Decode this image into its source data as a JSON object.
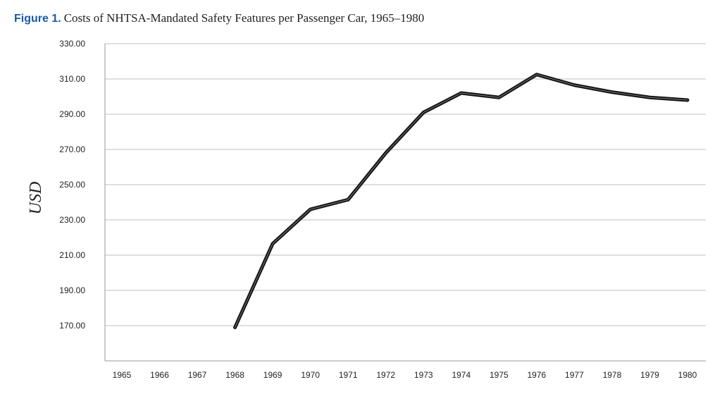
{
  "figure": {
    "label": "Figure 1.",
    "title": "Costs of NHTSA-Mandated Safety Features per Passenger Car, 1965–1980"
  },
  "chart_data": {
    "type": "line",
    "title": "Costs of NHTSA-Mandated Safety Features per Passenger Car, 1965–1980",
    "xlabel": "",
    "ylabel": "USD",
    "categories": [
      "1965",
      "1966",
      "1967",
      "1968",
      "1969",
      "1970",
      "1971",
      "1972",
      "1973",
      "1974",
      "1975",
      "1976",
      "1977",
      "1978",
      "1979",
      "1980"
    ],
    "series": [
      {
        "values": [
          null,
          null,
          null,
          169,
          216.5,
          236,
          241.5,
          268,
          291,
          302,
          299.5,
          312.5,
          306.5,
          302.5,
          299.5,
          298
        ]
      }
    ],
    "yticks": [
      "170.00",
      "190.00",
      "210.00",
      "230.00",
      "250.00",
      "270.00",
      "290.00",
      "310.00",
      "330.00"
    ],
    "ylim": [
      150,
      330
    ],
    "grid": true,
    "line_color": "#111111",
    "grid_color": "#bfbfbf"
  }
}
